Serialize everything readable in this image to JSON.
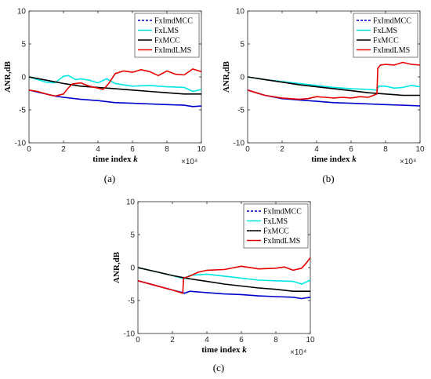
{
  "chart_data": [
    {
      "type": "line",
      "panel_label": "(a)",
      "xlabel": "time index k",
      "ylabel": "ANR,dB",
      "x_multiplier": "×10⁴",
      "xlim": [
        0,
        10
      ],
      "ylim": [
        -10,
        10
      ],
      "xticks": [
        0,
        2,
        4,
        6,
        8,
        10
      ],
      "yticks": [
        -10,
        -5,
        0,
        5,
        10
      ],
      "legend_position": "top-right",
      "series": [
        {
          "name": "FxImdMCC",
          "color": "#0000cc",
          "dashed": true,
          "x": [
            0,
            0.5,
            1,
            1.5,
            2,
            3,
            4,
            5,
            6,
            7,
            8,
            9,
            9.5,
            10
          ],
          "y": [
            -2.0,
            -2.3,
            -2.6,
            -2.9,
            -3.1,
            -3.4,
            -3.6,
            -3.9,
            -4.0,
            -4.1,
            -4.2,
            -4.3,
            -4.5,
            -4.4
          ]
        },
        {
          "name": "FxLMS",
          "color": "#00e6e6",
          "dashed": false,
          "x": [
            0,
            0.5,
            1,
            1.5,
            2,
            2.3,
            2.7,
            3,
            3.5,
            4,
            4.5,
            5,
            6,
            7,
            8,
            9,
            9.5,
            10
          ],
          "y": [
            0,
            -0.4,
            -0.8,
            -0.9,
            0.1,
            0.2,
            -0.4,
            -0.3,
            -0.5,
            -0.9,
            -0.3,
            -1.0,
            -1.4,
            -1.3,
            -1.5,
            -1.6,
            -2.2,
            -1.9
          ]
        },
        {
          "name": "FxMCC",
          "color": "#000000",
          "dashed": false,
          "x": [
            0,
            1,
            2,
            3,
            4,
            5,
            6,
            7,
            8,
            9,
            10
          ],
          "y": [
            0,
            -0.5,
            -1.0,
            -1.4,
            -1.6,
            -1.8,
            -2.0,
            -2.2,
            -2.4,
            -2.6,
            -2.6
          ]
        },
        {
          "name": "FxImdLMS",
          "color": "#e60000",
          "dashed": false,
          "x": [
            0,
            0.5,
            1,
            1.5,
            2,
            2.2,
            2.5,
            3,
            3.5,
            4,
            4.3,
            4.6,
            5,
            5.5,
            6,
            6.5,
            7,
            7.5,
            8,
            8.5,
            9,
            9.5,
            10
          ],
          "y": [
            -2.0,
            -2.2,
            -2.6,
            -2.9,
            -2.6,
            -1.9,
            -1.1,
            -0.9,
            -1.4,
            -1.7,
            -1.9,
            -1.1,
            0.5,
            0.9,
            0.7,
            1.1,
            0.8,
            0.2,
            0.9,
            0.4,
            0.3,
            1.2,
            0.8
          ]
        }
      ]
    },
    {
      "type": "line",
      "panel_label": "(b)",
      "xlabel": "time index k",
      "ylabel": "ANR,dB",
      "x_multiplier": "×10⁴",
      "xlim": [
        0,
        10
      ],
      "ylim": [
        -10,
        10
      ],
      "xticks": [
        0,
        2,
        4,
        6,
        8,
        10
      ],
      "yticks": [
        -10,
        -5,
        0,
        5,
        10
      ],
      "legend_position": "top-right",
      "series": [
        {
          "name": "FxImdMCC",
          "color": "#0000cc",
          "dashed": true,
          "x": [
            0,
            0.5,
            1,
            2,
            3,
            4,
            5,
            6,
            7,
            8,
            9,
            10
          ],
          "y": [
            -2.0,
            -2.4,
            -2.8,
            -3.3,
            -3.5,
            -3.7,
            -3.9,
            -4.0,
            -4.1,
            -4.2,
            -4.3,
            -4.4
          ]
        },
        {
          "name": "FxLMS",
          "color": "#00e6e6",
          "dashed": false,
          "x": [
            0,
            1,
            2,
            3,
            4,
            5,
            6,
            7,
            7.5,
            7.6,
            8,
            8.5,
            9,
            9.5,
            10
          ],
          "y": [
            0,
            -0.4,
            -0.7,
            -1.0,
            -1.3,
            -1.6,
            -1.8,
            -1.9,
            -2.0,
            -1.4,
            -1.4,
            -1.7,
            -1.6,
            -1.3,
            -1.5
          ]
        },
        {
          "name": "FxMCC",
          "color": "#000000",
          "dashed": false,
          "x": [
            0,
            1,
            2,
            3,
            4,
            5,
            6,
            7,
            8,
            9,
            10
          ],
          "y": [
            0,
            -0.4,
            -0.8,
            -1.2,
            -1.5,
            -1.8,
            -2.1,
            -2.4,
            -2.6,
            -2.8,
            -2.8
          ]
        },
        {
          "name": "FxImdLMS",
          "color": "#e60000",
          "dashed": false,
          "x": [
            0,
            0.5,
            1,
            2,
            3,
            3.5,
            4,
            4.5,
            5,
            5.5,
            6,
            6.5,
            7,
            7.5,
            7.55,
            7.7,
            8,
            8.5,
            9,
            9.5,
            10
          ],
          "y": [
            -2.0,
            -2.4,
            -2.8,
            -3.2,
            -3.4,
            -3.3,
            -3.0,
            -3.1,
            -3.2,
            -3.1,
            -3.2,
            -3.0,
            -3.1,
            -2.6,
            1.3,
            1.8,
            1.9,
            1.8,
            2.2,
            1.9,
            1.8
          ]
        }
      ]
    },
    {
      "type": "line",
      "panel_label": "(c)",
      "xlabel": "time index k",
      "ylabel": "ANR,dB",
      "x_multiplier": "×10⁴",
      "xlim": [
        0,
        10
      ],
      "ylim": [
        -10,
        10
      ],
      "xticks": [
        0,
        2,
        4,
        6,
        8,
        10
      ],
      "yticks": [
        -10,
        -5,
        0,
        5,
        10
      ],
      "legend_position": "top-right",
      "series": [
        {
          "name": "FxImdMCC",
          "color": "#0000cc",
          "dashed": true,
          "x": [
            0,
            1,
            2,
            2.6,
            2.7,
            3,
            4,
            5,
            6,
            7,
            8,
            9,
            9.5,
            10
          ],
          "y": [
            -2.0,
            -2.7,
            -3.4,
            -3.8,
            -3.9,
            -3.6,
            -3.8,
            -4.0,
            -4.1,
            -4.3,
            -4.4,
            -4.5,
            -4.7,
            -4.5
          ]
        },
        {
          "name": "FxLMS",
          "color": "#00e6e6",
          "dashed": false,
          "x": [
            0,
            1,
            2,
            2.7,
            3,
            4,
            5,
            6,
            7,
            8,
            9,
            9.5,
            10
          ],
          "y": [
            0,
            -0.6,
            -1.2,
            -1.7,
            -1.2,
            -1.0,
            -1.3,
            -1.6,
            -1.9,
            -2.0,
            -2.1,
            -2.5,
            -1.9
          ]
        },
        {
          "name": "FxMCC",
          "color": "#000000",
          "dashed": false,
          "x": [
            0,
            1,
            2,
            3,
            4,
            5,
            6,
            7,
            8,
            9,
            10
          ],
          "y": [
            0,
            -0.6,
            -1.2,
            -1.7,
            -2.1,
            -2.5,
            -2.8,
            -3.1,
            -3.3,
            -3.6,
            -3.6
          ]
        },
        {
          "name": "FxImdLMS",
          "color": "#e60000",
          "dashed": false,
          "x": [
            0,
            1,
            2,
            2.6,
            2.65,
            3,
            3.5,
            4,
            5,
            6,
            7,
            8,
            8.5,
            9,
            9.5,
            9.8,
            10
          ],
          "y": [
            -2.0,
            -2.7,
            -3.4,
            -3.9,
            -1.6,
            -1.3,
            -0.7,
            -0.4,
            -0.3,
            0.2,
            -0.2,
            -0.1,
            0.1,
            -0.4,
            -0.1,
            0.8,
            1.5
          ]
        }
      ]
    }
  ]
}
